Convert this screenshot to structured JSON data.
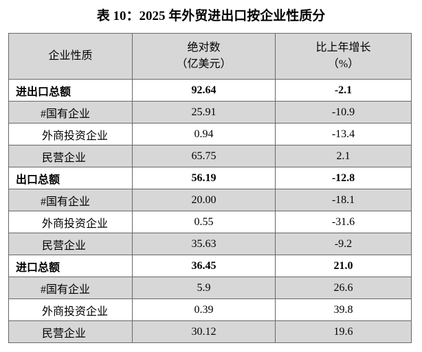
{
  "title": "表 10：2025 年外贸进出口按企业性质分",
  "table": {
    "header": [
      [
        "企业性质"
      ],
      [
        "绝对数",
        "（亿美元）"
      ],
      [
        "比上年增长",
        "（%）"
      ]
    ],
    "rows": [
      [
        "进出口总额",
        "92.64",
        "-2.1"
      ],
      [
        "#国有企业",
        "25.91",
        "-10.9"
      ],
      [
        "外商投资企业",
        "0.94",
        "-13.4"
      ],
      [
        "民营企业",
        "65.75",
        "2.1"
      ],
      [
        "出口总额",
        "56.19",
        "-12.8"
      ],
      [
        "#国有企业",
        "20.00",
        "-18.1"
      ],
      [
        "外商投资企业",
        "0.55",
        "-31.6"
      ],
      [
        "民营企业",
        "35.63",
        "-9.2"
      ],
      [
        "进口总额",
        "36.45",
        "21.0"
      ],
      [
        "#国有企业",
        "5.9",
        "26.6"
      ],
      [
        "外商投资企业",
        "0.39",
        "39.8"
      ],
      [
        "民营企业",
        "30.12",
        "19.6"
      ]
    ]
  }
}
